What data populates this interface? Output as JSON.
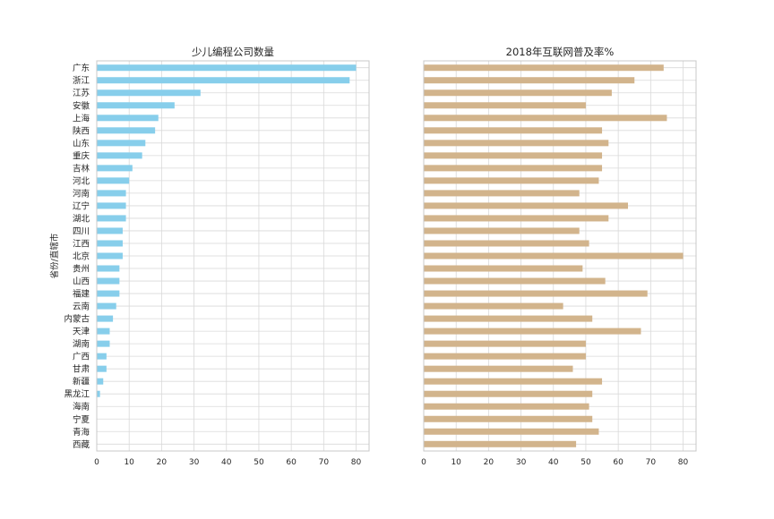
{
  "chart_data": [
    {
      "type": "bar",
      "orientation": "horizontal",
      "title": "少儿编程公司数量",
      "xlabel": "",
      "ylabel": "省份/直辖市",
      "xlim": [
        0,
        84
      ],
      "xticks": [
        0,
        10,
        20,
        30,
        40,
        50,
        60,
        70,
        80
      ],
      "grid": true,
      "bar_color": "#87CEEB",
      "categories": [
        "广东",
        "浙江",
        "江苏",
        "安徽",
        "上海",
        "陕西",
        "山东",
        "重庆",
        "吉林",
        "河北",
        "河南",
        "辽宁",
        "湖北",
        "四川",
        "江西",
        "北京",
        "贵州",
        "山西",
        "福建",
        "云南",
        "内蒙古",
        "天津",
        "湖南",
        "广西",
        "甘肃",
        "新疆",
        "黑龙江",
        "海南",
        "宁夏",
        "青海",
        "西藏"
      ],
      "values": [
        80,
        78,
        32,
        24,
        19,
        18,
        15,
        14,
        11,
        10,
        9,
        9,
        9,
        8,
        8,
        8,
        7,
        7,
        7,
        6,
        5,
        4,
        4,
        3,
        3,
        2,
        1,
        0,
        0,
        0,
        0
      ]
    },
    {
      "type": "bar",
      "orientation": "horizontal",
      "title": "2018年互联网普及率%",
      "xlabel": "",
      "ylabel": "",
      "xlim": [
        0,
        84
      ],
      "xticks": [
        0,
        10,
        20,
        30,
        40,
        50,
        60,
        70,
        80
      ],
      "grid": true,
      "bar_color": "#D2B48C",
      "categories": [
        "广东",
        "浙江",
        "江苏",
        "安徽",
        "上海",
        "陕西",
        "山东",
        "重庆",
        "吉林",
        "河北",
        "河南",
        "辽宁",
        "湖北",
        "四川",
        "江西",
        "北京",
        "贵州",
        "山西",
        "福建",
        "云南",
        "内蒙古",
        "天津",
        "湖南",
        "广西",
        "甘肃",
        "新疆",
        "黑龙江",
        "海南",
        "宁夏",
        "青海",
        "西藏"
      ],
      "values": [
        74,
        65,
        58,
        50,
        75,
        55,
        57,
        55,
        55,
        54,
        48,
        63,
        57,
        48,
        51,
        80,
        49,
        56,
        69,
        43,
        52,
        67,
        50,
        50,
        46,
        55,
        52,
        51,
        52,
        54,
        47
      ]
    }
  ]
}
